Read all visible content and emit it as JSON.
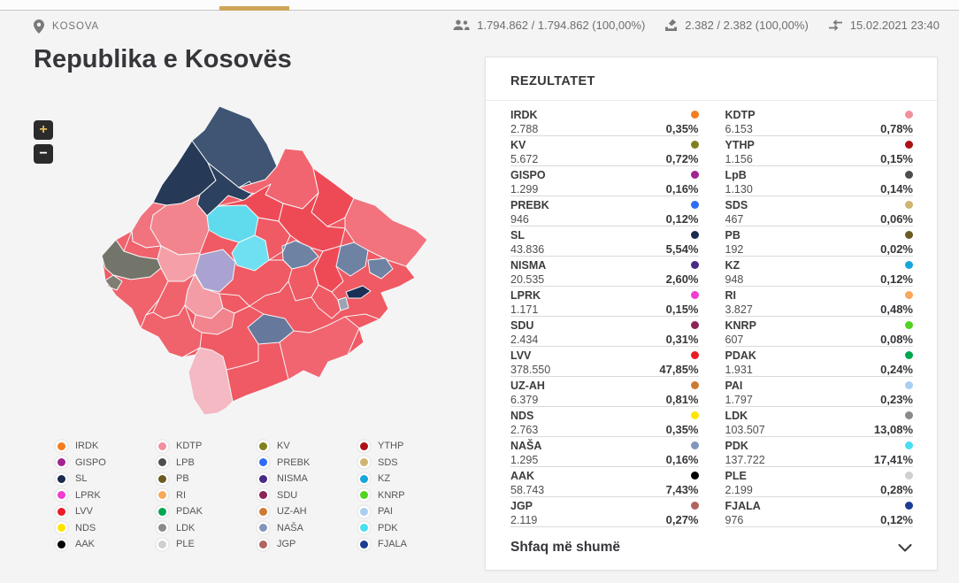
{
  "accent_gold": "#cfa55a",
  "topbar": {
    "location": "KOSOVA",
    "stats": [
      {
        "icon": "people-icon",
        "value": "1.794.862 / 1.794.862 (100,00%)"
      },
      {
        "icon": "ballot-box-icon",
        "value": "2.382 / 2.382 (100,00%)"
      },
      {
        "icon": "compare-arrows-icon",
        "value": "15.02.2021 23:40"
      }
    ]
  },
  "title": "Republika e Kosovës",
  "map": {
    "zoom_in_label": "+",
    "zoom_out_label": "−",
    "base_color": "#ef5a64",
    "region_colors": [
      "#3f5573",
      "#263a58",
      "#2c4060",
      "#f16570",
      "#ee4a56",
      "#f2737d",
      "#ee4a56",
      "#60dbee",
      "#6ee0f1",
      "#f2848e",
      "#f0737e",
      "#f0626c",
      "#74756a",
      "#7e7f72",
      "#f0626c",
      "#f5a0a8",
      "#aaa3d1",
      "#f49ca5",
      "#f0626c",
      "#f2848e",
      "#f0626c",
      "#f4b9c3",
      "#ee4a56",
      "#6e82a4",
      "#6e82a4",
      "#6e82a4",
      "#ee4a56",
      "#1c2f55",
      "#9aa4b5",
      "#66789c",
      "#f16570"
    ]
  },
  "legend": {
    "columns": [
      [
        {
          "party": "IRDK",
          "color": "#f47b20"
        },
        {
          "party": "GISPO",
          "color": "#a2248f"
        },
        {
          "party": "SL",
          "color": "#1b2b4d"
        },
        {
          "party": "LPRK",
          "color": "#f23cd3"
        },
        {
          "party": "LVV",
          "color": "#ea1c26"
        },
        {
          "party": "NDS",
          "color": "#ffe400"
        },
        {
          "party": "AAK",
          "color": "#000000"
        }
      ],
      [
        {
          "party": "KDTP",
          "color": "#f1919e"
        },
        {
          "party": "LPB",
          "color": "#4d4d4d"
        },
        {
          "party": "PB",
          "color": "#6b5b22"
        },
        {
          "party": "RI",
          "color": "#f9a85b"
        },
        {
          "party": "PDAK",
          "color": "#00a650"
        },
        {
          "party": "LDK",
          "color": "#8a8a8a"
        },
        {
          "party": "PLE",
          "color": "#cfcfcf"
        }
      ],
      [
        {
          "party": "KV",
          "color": "#7f801d"
        },
        {
          "party": "PREBK",
          "color": "#2e6df5"
        },
        {
          "party": "NISMA",
          "color": "#472a83"
        },
        {
          "party": "SDU",
          "color": "#8e2255"
        },
        {
          "party": "UZ-AH",
          "color": "#cd7a31"
        },
        {
          "party": "NAŠA",
          "color": "#8295bb"
        },
        {
          "party": "JGP",
          "color": "#b26360"
        }
      ],
      [
        {
          "party": "YTHP",
          "color": "#ad1015"
        },
        {
          "party": "SDS",
          "color": "#cfb472"
        },
        {
          "party": "KZ",
          "color": "#16a6db"
        },
        {
          "party": "KNRP",
          "color": "#52d321"
        },
        {
          "party": "PAI",
          "color": "#a9cef1"
        },
        {
          "party": "PDK",
          "color": "#49dff1"
        },
        {
          "party": "FJALA",
          "color": "#1c3e92"
        }
      ]
    ]
  },
  "results": {
    "title": "REZULTATET",
    "show_more": "Shfaq më shumë",
    "columns": [
      [
        {
          "party": "IRDK",
          "votes": "2.788",
          "percent": "0,35%",
          "color": "#f47b20"
        },
        {
          "party": "KV",
          "votes": "5.672",
          "percent": "0,72%",
          "color": "#7f801d"
        },
        {
          "party": "GISPO",
          "votes": "1.299",
          "percent": "0,16%",
          "color": "#a2248f"
        },
        {
          "party": "PREBK",
          "votes": "946",
          "percent": "0,12%",
          "color": "#2e6df5"
        },
        {
          "party": "SL",
          "votes": "43.836",
          "percent": "5,54%",
          "color": "#1b2b4d"
        },
        {
          "party": "NISMA",
          "votes": "20.535",
          "percent": "2,60%",
          "color": "#472a83"
        },
        {
          "party": "LPRK",
          "votes": "1.171",
          "percent": "0,15%",
          "color": "#f23cd3"
        },
        {
          "party": "SDU",
          "votes": "2.434",
          "percent": "0,31%",
          "color": "#8e2255"
        },
        {
          "party": "LVV",
          "votes": "378.550",
          "percent": "47,85%",
          "color": "#ea1c26"
        },
        {
          "party": "UZ-AH",
          "votes": "6.379",
          "percent": "0,81%",
          "color": "#cd7a31"
        },
        {
          "party": "NDS",
          "votes": "2.763",
          "percent": "0,35%",
          "color": "#ffe400"
        },
        {
          "party": "NAŠA",
          "votes": "1.295",
          "percent": "0,16%",
          "color": "#8295bb"
        },
        {
          "party": "AAK",
          "votes": "58.743",
          "percent": "7,43%",
          "color": "#000000"
        },
        {
          "party": "JGP",
          "votes": "2.119",
          "percent": "0,27%",
          "color": "#b26360"
        }
      ],
      [
        {
          "party": "KDTP",
          "votes": "6.153",
          "percent": "0,78%",
          "color": "#f1919e"
        },
        {
          "party": "YTHP",
          "votes": "1.156",
          "percent": "0,15%",
          "color": "#ad1015"
        },
        {
          "party": "LpB",
          "votes": "1.130",
          "percent": "0,14%",
          "color": "#4d4d4d"
        },
        {
          "party": "SDS",
          "votes": "467",
          "percent": "0,06%",
          "color": "#cfb472"
        },
        {
          "party": "PB",
          "votes": "192",
          "percent": "0,02%",
          "color": "#6b5b22"
        },
        {
          "party": "KZ",
          "votes": "948",
          "percent": "0,12%",
          "color": "#16a6db"
        },
        {
          "party": "RI",
          "votes": "3.827",
          "percent": "0,48%",
          "color": "#f9a85b"
        },
        {
          "party": "KNRP",
          "votes": "607",
          "percent": "0,08%",
          "color": "#52d321"
        },
        {
          "party": "PDAK",
          "votes": "1.931",
          "percent": "0,24%",
          "color": "#00a650"
        },
        {
          "party": "PAI",
          "votes": "1.797",
          "percent": "0,23%",
          "color": "#a9cef1"
        },
        {
          "party": "LDK",
          "votes": "103.507",
          "percent": "13,08%",
          "color": "#8a8a8a"
        },
        {
          "party": "PDK",
          "votes": "137.722",
          "percent": "17,41%",
          "color": "#49dff1"
        },
        {
          "party": "PLE",
          "votes": "2.199",
          "percent": "0,28%",
          "color": "#cfcfcf"
        },
        {
          "party": "FJALA",
          "votes": "976",
          "percent": "0,12%",
          "color": "#1c3e92"
        }
      ]
    ]
  }
}
